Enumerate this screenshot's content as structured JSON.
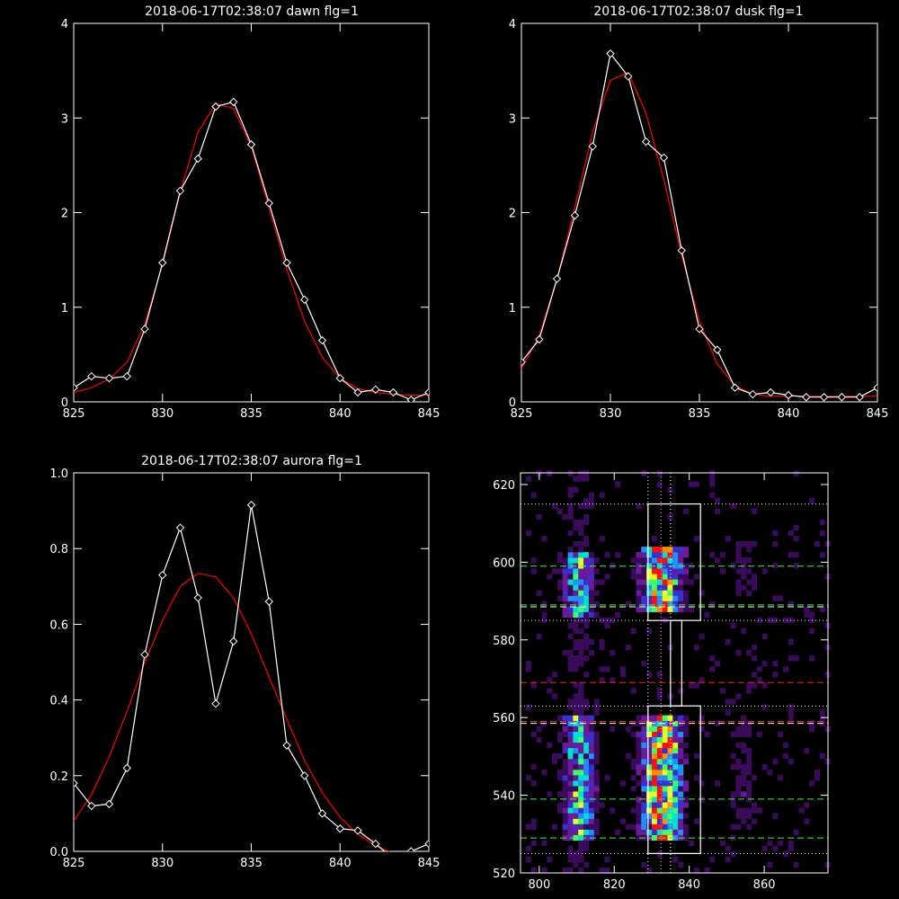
{
  "colors": {
    "background": "#000000",
    "axes": "#ffffff",
    "data": "#ffffff",
    "fit": "#ff0000"
  },
  "chart_data": [
    {
      "type": "line",
      "title": "2018-06-17T02:38:07 dawn flg=1",
      "xlim": [
        825,
        845
      ],
      "ylim": [
        0,
        4
      ],
      "xticks": [
        825,
        830,
        835,
        840,
        845
      ],
      "yticks": [
        0,
        1,
        2,
        3,
        4
      ],
      "grid": false,
      "series": [
        {
          "kind": "data",
          "marker": "diamond",
          "x": [
            825,
            826,
            827,
            828,
            829,
            830,
            831,
            832,
            833,
            834,
            835,
            836,
            837,
            838,
            839,
            840,
            841,
            842,
            843,
            844,
            845
          ],
          "y": [
            0.15,
            0.27,
            0.25,
            0.27,
            0.77,
            1.47,
            2.23,
            2.57,
            3.12,
            3.17,
            2.72,
            2.1,
            1.47,
            1.08,
            0.65,
            0.25,
            0.1,
            0.13,
            0.1,
            0.02,
            0.1
          ]
        },
        {
          "kind": "fit",
          "x": [
            825,
            826,
            827,
            828,
            829,
            830,
            831,
            832,
            833,
            834,
            835,
            836,
            837,
            838,
            839,
            840,
            841,
            842,
            843,
            844,
            845
          ],
          "y": [
            0.1,
            0.15,
            0.24,
            0.42,
            0.82,
            1.45,
            2.22,
            2.85,
            3.15,
            3.1,
            2.7,
            2.05,
            1.4,
            0.85,
            0.47,
            0.25,
            0.14,
            0.1,
            0.08,
            0.07,
            0.07
          ]
        }
      ]
    },
    {
      "type": "line",
      "title": "2018-06-17T02:38:07 dusk flg=1",
      "xlim": [
        825,
        845
      ],
      "ylim": [
        0,
        4
      ],
      "xticks": [
        825,
        830,
        835,
        840,
        845
      ],
      "yticks": [
        0,
        1,
        2,
        3,
        4
      ],
      "grid": false,
      "series": [
        {
          "kind": "data",
          "marker": "diamond",
          "x": [
            825,
            826,
            827,
            828,
            829,
            830,
            831,
            832,
            833,
            834,
            835,
            836,
            837,
            838,
            839,
            840,
            841,
            842,
            843,
            844,
            845
          ],
          "y": [
            0.42,
            0.66,
            1.3,
            1.97,
            2.7,
            3.68,
            3.44,
            2.75,
            2.58,
            1.6,
            0.77,
            0.55,
            0.15,
            0.08,
            0.1,
            0.07,
            0.05,
            0.05,
            0.05,
            0.05,
            0.15
          ]
        },
        {
          "kind": "fit",
          "x": [
            825,
            826,
            827,
            828,
            829,
            830,
            831,
            832,
            833,
            834,
            835,
            836,
            837,
            838,
            839,
            840,
            841,
            842,
            843,
            844,
            845
          ],
          "y": [
            0.35,
            0.7,
            1.3,
            2.05,
            2.85,
            3.4,
            3.48,
            3.05,
            2.35,
            1.55,
            0.85,
            0.4,
            0.17,
            0.08,
            0.06,
            0.06,
            0.06,
            0.06,
            0.06,
            0.06,
            0.06
          ]
        }
      ]
    },
    {
      "type": "line",
      "title": "2018-06-17T02:38:07 aurora flg=1",
      "xlim": [
        825,
        845
      ],
      "ylim": [
        0,
        1
      ],
      "xticks": [
        825,
        830,
        835,
        840,
        845
      ],
      "yticks": [
        0.0,
        0.2,
        0.4,
        0.6,
        0.8,
        1.0
      ],
      "yticklabels": [
        "0.0",
        "0.2",
        "0.4",
        "0.6",
        "0.8",
        "1.0"
      ],
      "grid": false,
      "series": [
        {
          "kind": "data",
          "marker": "diamond",
          "x": [
            825,
            826,
            827,
            828,
            829,
            830,
            831,
            832,
            833,
            834,
            835,
            836,
            837,
            838,
            839,
            840,
            841,
            842,
            843,
            844,
            845
          ],
          "y": [
            0.18,
            0.12,
            0.125,
            0.22,
            0.52,
            0.73,
            0.855,
            0.67,
            0.39,
            0.555,
            0.915,
            0.66,
            0.28,
            0.2,
            0.1,
            0.06,
            0.055,
            0.02,
            -0.02,
            0.0,
            0.02
          ]
        },
        {
          "kind": "fit",
          "x": [
            825,
            826,
            827,
            828,
            829,
            830,
            831,
            832,
            833,
            834,
            835,
            836,
            837,
            838,
            839,
            840,
            841,
            842,
            843,
            844,
            845
          ],
          "y": [
            0.08,
            0.15,
            0.25,
            0.37,
            0.5,
            0.61,
            0.7,
            0.735,
            0.725,
            0.67,
            0.575,
            0.46,
            0.35,
            0.24,
            0.155,
            0.09,
            0.045,
            0.015,
            -0.005,
            -0.015,
            -0.02
          ]
        }
      ]
    },
    {
      "type": "heatmap",
      "title": "",
      "xlim": [
        795,
        877
      ],
      "ylim": [
        520,
        623
      ],
      "xticks": [
        800,
        820,
        840,
        860
      ],
      "yticks": [
        520,
        540,
        560,
        580,
        600,
        620
      ],
      "grid": false,
      "emission_columns": [
        {
          "x_center": 810,
          "x_width": 4
        },
        {
          "x_center": 832,
          "x_width": 5
        },
        {
          "x_center": 854,
          "x_width": 4
        }
      ],
      "boxes": [
        {
          "x": [
            829,
            843
          ],
          "y": [
            585,
            615
          ]
        },
        {
          "x": [
            829,
            843
          ],
          "y": [
            525,
            563
          ]
        },
        {
          "x": [
            835,
            838
          ],
          "y": [
            563,
            585
          ]
        }
      ],
      "vertical_dotted_lines": [
        {
          "x": 829,
          "color": "#ffffff"
        },
        {
          "x": 832.5,
          "color": "#ff66ff"
        },
        {
          "x": 835,
          "color": "#ffffff"
        }
      ],
      "horizontal_lines": [
        {
          "y": 615,
          "style": "dotted",
          "color": "#ffffff"
        },
        {
          "y": 599,
          "style": "dashed",
          "color": "#33ff33"
        },
        {
          "y": 589,
          "style": "dashed",
          "color": "#33ff33"
        },
        {
          "y": 588.5,
          "style": "dashed",
          "color": "#ffffff"
        },
        {
          "y": 585,
          "style": "dotted",
          "color": "#ffffff"
        },
        {
          "y": 569,
          "style": "dashed",
          "color": "#ff2020"
        },
        {
          "y": 563,
          "style": "dotted",
          "color": "#ffffff"
        },
        {
          "y": 559,
          "style": "dashed",
          "color": "#ff2020"
        },
        {
          "y": 558.5,
          "style": "dashed",
          "color": "#ffffff"
        },
        {
          "y": 539,
          "style": "dashed",
          "color": "#33ff33"
        },
        {
          "y": 529,
          "style": "dashed",
          "color": "#33ff33"
        },
        {
          "y": 525,
          "style": "dotted",
          "color": "#ffffff"
        }
      ],
      "colormap": [
        "#000000",
        "#3a0b5a",
        "#6a1a9a",
        "#3a2fd0",
        "#1f8fff",
        "#00e0d0",
        "#40ff60",
        "#e8ff20",
        "#ff9000",
        "#ff1010"
      ]
    }
  ]
}
